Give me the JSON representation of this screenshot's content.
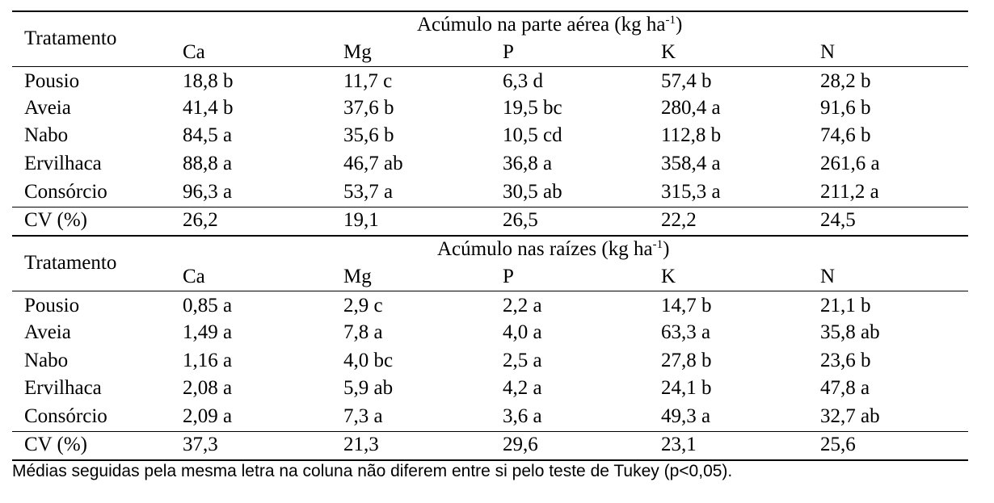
{
  "sections": [
    {
      "title_main": "Acúmulo na parte aérea (kg ha",
      "title_sup": "-1",
      "title_close": ")",
      "row_header": "Tratamento",
      "columns": [
        "Ca",
        "Mg",
        "P",
        "K",
        "N"
      ],
      "rows": [
        {
          "label": "Pousio",
          "values": [
            "18,8 b",
            "11,7 c",
            "6,3 d",
            "57,4 b",
            "28,2 b"
          ]
        },
        {
          "label": "Aveia",
          "values": [
            "41,4 b",
            "37,6 b",
            "19,5 bc",
            "280,4 a",
            "91,6 b"
          ]
        },
        {
          "label": "Nabo",
          "values": [
            "84,5 a",
            "35,6 b",
            "10,5 cd",
            "112,8 b",
            "74,6 b"
          ]
        },
        {
          "label": "Ervilhaca",
          "values": [
            "88,8 a",
            "46,7 ab",
            "36,8 a",
            "358,4 a",
            "261,6 a"
          ]
        },
        {
          "label": "Consórcio",
          "values": [
            "96,3 a",
            "53,7 a",
            "30,5 ab",
            "315,3 a",
            "211,2 a"
          ]
        }
      ],
      "cv": {
        "label": "CV (%)",
        "values": [
          "26,2",
          "19,1",
          "26,5",
          "22,2",
          "24,5"
        ]
      }
    },
    {
      "title_main": "Acúmulo nas raízes (kg ha",
      "title_sup": "-1",
      "title_close": ")",
      "row_header": "Tratamento",
      "columns": [
        "Ca",
        "Mg",
        "P",
        "K",
        "N"
      ],
      "rows": [
        {
          "label": "Pousio",
          "values": [
            "0,85 a",
            "2,9 c",
            "2,2 a",
            "14,7 b",
            "21,1 b"
          ]
        },
        {
          "label": "Aveia",
          "values": [
            "1,49 a",
            "7,8 a",
            "4,0 a",
            "63,3 a",
            "35,8 ab"
          ]
        },
        {
          "label": "Nabo",
          "values": [
            "1,16 a",
            "4,0 bc",
            "2,5 a",
            "27,8 b",
            "23,6 b"
          ]
        },
        {
          "label": "Ervilhaca",
          "values": [
            "2,08 a",
            "5,9 ab",
            "4,2 a",
            "24,1 b",
            "47,8 a"
          ]
        },
        {
          "label": "Consórcio",
          "values": [
            "2,09 a",
            "7,3 a",
            "3,6 a",
            "49,3 a",
            "32,7 ab"
          ]
        }
      ],
      "cv": {
        "label": "CV (%)",
        "values": [
          "37,3",
          "21,3",
          "29,6",
          "23,1",
          "25,6"
        ]
      }
    }
  ],
  "footnote": "Médias seguidas pela mesma letra na coluna não diferem entre si pelo teste de Tukey (p<0,05)."
}
